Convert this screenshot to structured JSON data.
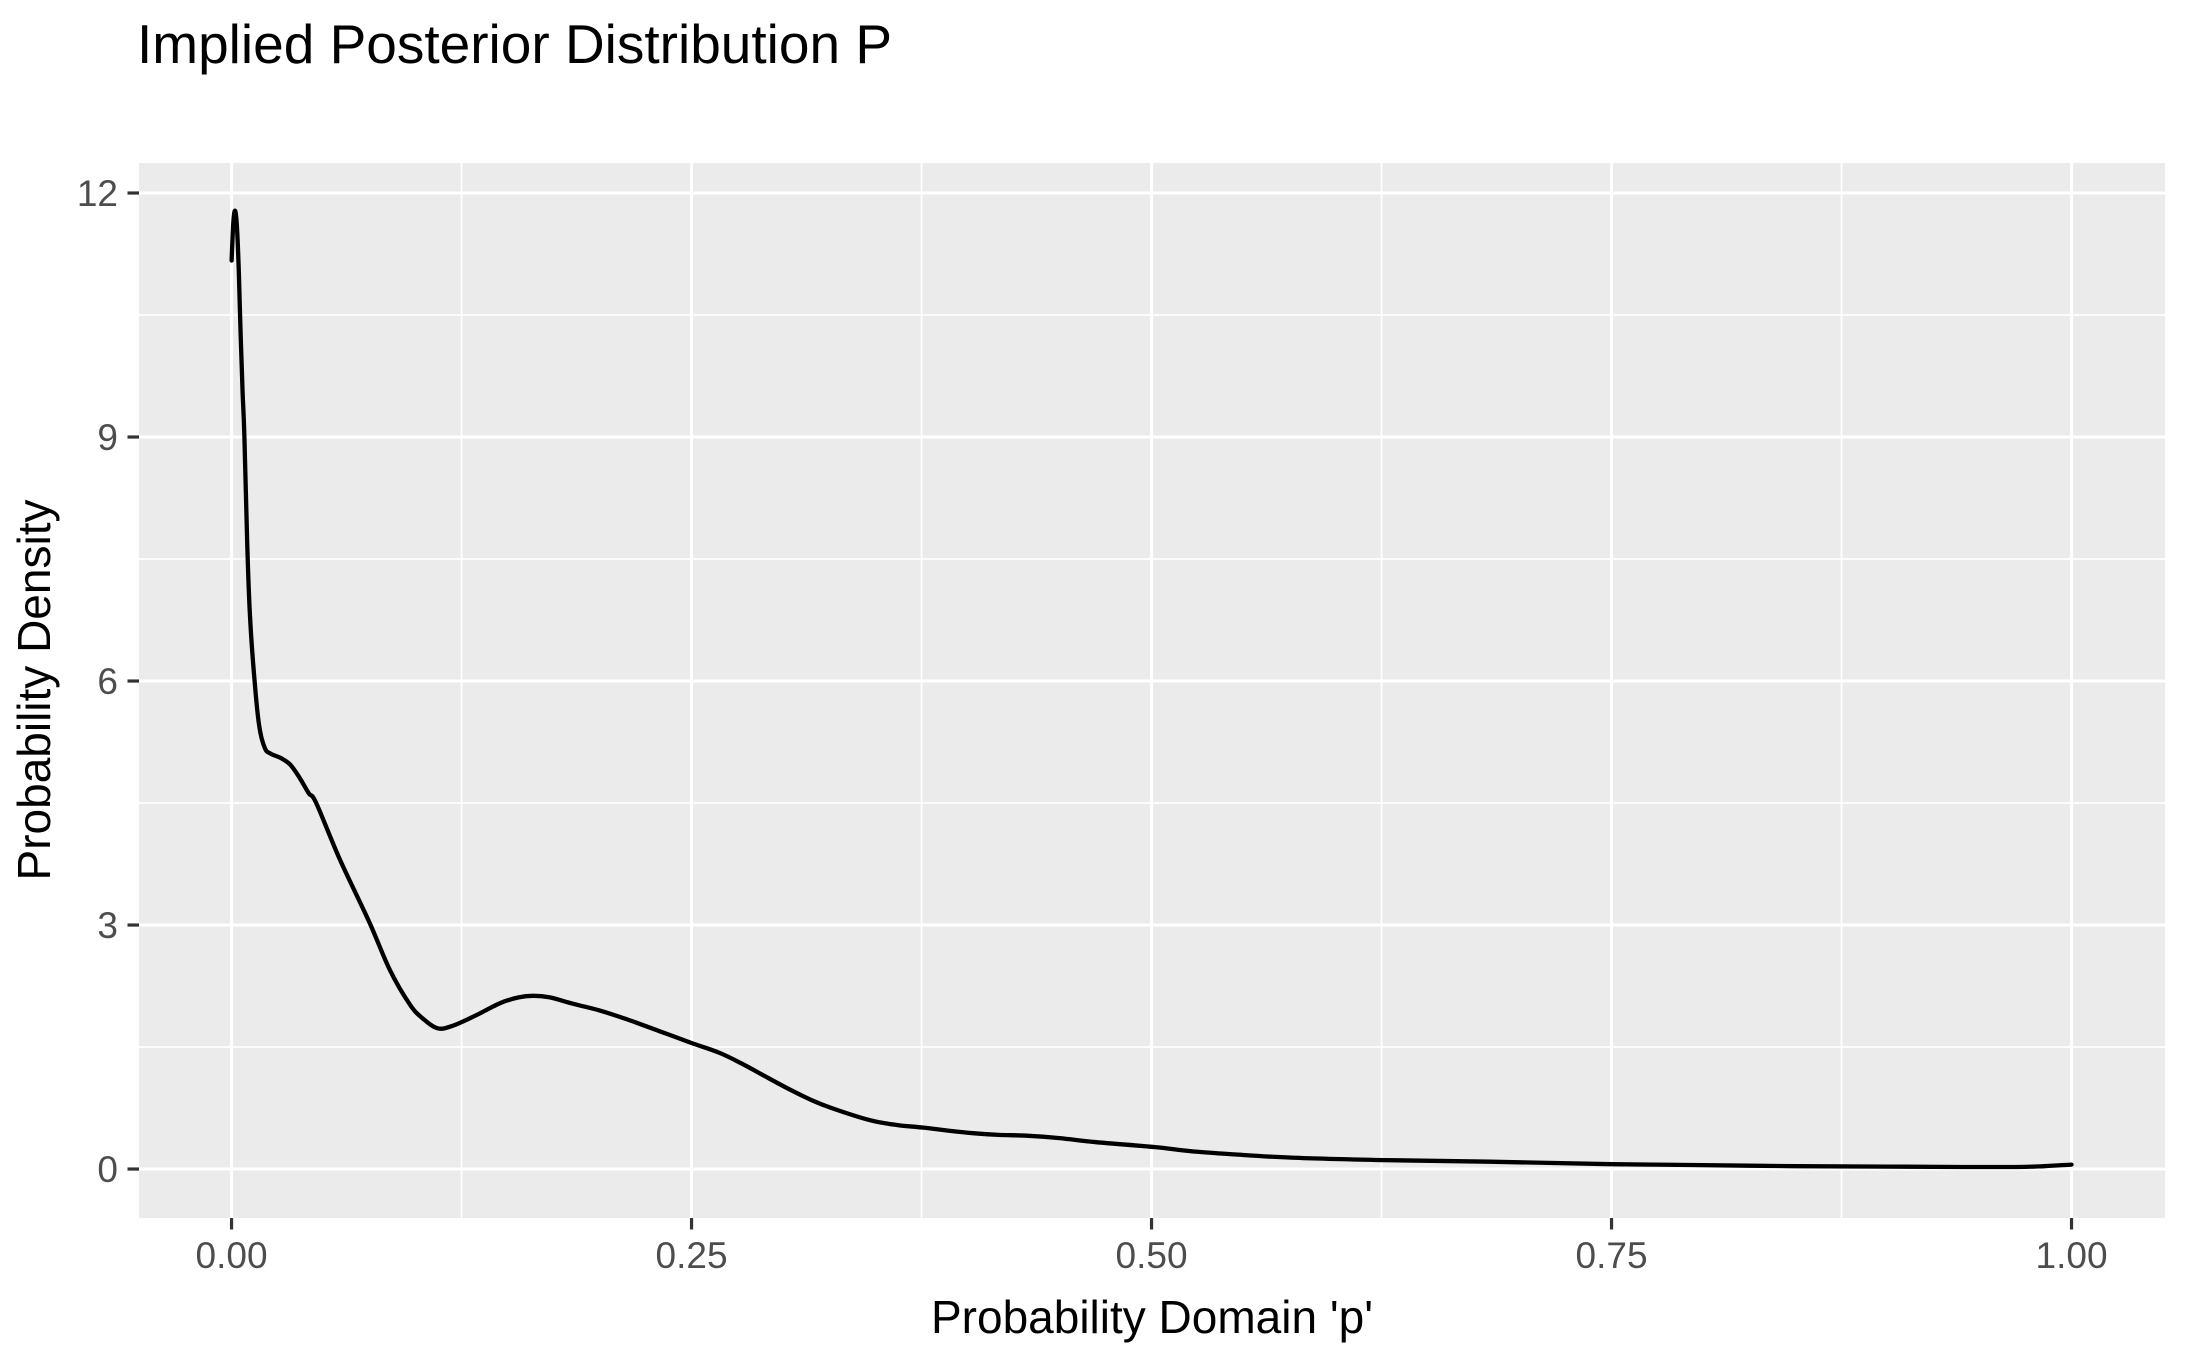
{
  "title": "Implied Posterior Distribution P",
  "colors": {
    "page_bg": "#FFFFFF",
    "panel_bg": "#EBEBEB",
    "grid_major": "#FFFFFF",
    "grid_minor": "#FFFFFF",
    "tick_mark": "#333333",
    "tick_label": "#4D4D4D",
    "title_text": "#000000",
    "curve": "#000000"
  },
  "chart_data": {
    "type": "line",
    "title": "Implied Posterior Distribution P",
    "xlabel": "Probability Domain 'p'",
    "ylabel": "Probability Density",
    "grid": true,
    "legend": false,
    "xlim": [
      -0.0503,
      1.0508
    ],
    "ylim": [
      -0.602,
      12.369
    ],
    "x_ticks": {
      "values": [
        0,
        0.25,
        0.5,
        0.75,
        1.0
      ],
      "labels": [
        "0.00",
        "0.25",
        "0.50",
        "0.75",
        "1.00"
      ]
    },
    "y_ticks": {
      "values": [
        0,
        3,
        6,
        9,
        12
      ],
      "labels": [
        "0",
        "3",
        "6",
        "9",
        "12"
      ]
    },
    "x_minor": [
      0.125,
      0.375,
      0.625,
      0.875
    ],
    "y_minor": [
      1.5,
      4.5,
      7.5,
      10.5
    ],
    "series": [
      {
        "name": "posterior-density",
        "color": "#000000",
        "points": [
          [
            0.0,
            11.17
          ],
          [
            0.001,
            11.65
          ],
          [
            0.002,
            11.78
          ],
          [
            0.003,
            11.55
          ],
          [
            0.004,
            11.0
          ],
          [
            0.005,
            10.2
          ],
          [
            0.006,
            9.55
          ],
          [
            0.007,
            9.0
          ],
          [
            0.0085,
            7.7
          ],
          [
            0.01,
            6.8
          ],
          [
            0.0125,
            6.0
          ],
          [
            0.015,
            5.45
          ],
          [
            0.018,
            5.18
          ],
          [
            0.021,
            5.11
          ],
          [
            0.027,
            5.05
          ],
          [
            0.032,
            4.97
          ],
          [
            0.037,
            4.81
          ],
          [
            0.042,
            4.62
          ],
          [
            0.046,
            4.5
          ],
          [
            0.059,
            3.8
          ],
          [
            0.075,
            3.03
          ],
          [
            0.086,
            2.45
          ],
          [
            0.097,
            2.02
          ],
          [
            0.104,
            1.85
          ],
          [
            0.112,
            1.73
          ],
          [
            0.12,
            1.76
          ],
          [
            0.132,
            1.88
          ],
          [
            0.146,
            2.04
          ],
          [
            0.156,
            2.11
          ],
          [
            0.164,
            2.13
          ],
          [
            0.173,
            2.11
          ],
          [
            0.186,
            2.03
          ],
          [
            0.2,
            1.95
          ],
          [
            0.215,
            1.84
          ],
          [
            0.232,
            1.7
          ],
          [
            0.25,
            1.55
          ],
          [
            0.265,
            1.43
          ],
          [
            0.277,
            1.3
          ],
          [
            0.29,
            1.14
          ],
          [
            0.304,
            0.97
          ],
          [
            0.315,
            0.85
          ],
          [
            0.326,
            0.75
          ],
          [
            0.347,
            0.6
          ],
          [
            0.362,
            0.54
          ],
          [
            0.376,
            0.51
          ],
          [
            0.39,
            0.47
          ],
          [
            0.403,
            0.44
          ],
          [
            0.417,
            0.42
          ],
          [
            0.432,
            0.41
          ],
          [
            0.45,
            0.38
          ],
          [
            0.47,
            0.33
          ],
          [
            0.502,
            0.27
          ],
          [
            0.521,
            0.22
          ],
          [
            0.545,
            0.18
          ],
          [
            0.576,
            0.14
          ],
          [
            0.626,
            0.11
          ],
          [
            0.684,
            0.09
          ],
          [
            0.75,
            0.06
          ],
          [
            0.793,
            0.05
          ],
          [
            0.85,
            0.035
          ],
          [
            0.9,
            0.03
          ],
          [
            0.94,
            0.025
          ],
          [
            0.97,
            0.025
          ],
          [
            0.985,
            0.035
          ],
          [
            1.0,
            0.055
          ]
        ]
      }
    ]
  }
}
